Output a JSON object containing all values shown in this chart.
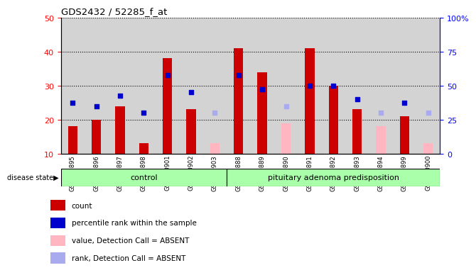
{
  "title": "GDS2432 / 52285_f_at",
  "samples": [
    "GSM100895",
    "GSM100896",
    "GSM100897",
    "GSM100898",
    "GSM100901",
    "GSM100902",
    "GSM100903",
    "GSM100888",
    "GSM100889",
    "GSM100890",
    "GSM100891",
    "GSM100892",
    "GSM100893",
    "GSM100894",
    "GSM100899",
    "GSM100900"
  ],
  "count_values": [
    18,
    20,
    24,
    13,
    38,
    23,
    null,
    41,
    34,
    null,
    41,
    30,
    23,
    null,
    21,
    null
  ],
  "rank_values_left": [
    25,
    24,
    27,
    22,
    33,
    28,
    null,
    33,
    29,
    null,
    30,
    30,
    26,
    null,
    25,
    null
  ],
  "absent_value": [
    null,
    null,
    null,
    null,
    null,
    null,
    13,
    null,
    null,
    19,
    null,
    null,
    null,
    18,
    null,
    13
  ],
  "absent_rank_left": [
    null,
    null,
    null,
    null,
    null,
    null,
    22,
    null,
    null,
    24,
    null,
    null,
    null,
    22,
    null,
    22
  ],
  "ylim_left": [
    10,
    50
  ],
  "ylim_right": [
    0,
    100
  ],
  "left_ticks": [
    10,
    20,
    30,
    40,
    50
  ],
  "right_ticks": [
    0,
    25,
    50,
    75,
    100
  ],
  "bar_color": "#cc0000",
  "rank_color": "#0000cc",
  "absent_bar_color": "#ffb6c1",
  "absent_rank_color": "#aaaaee",
  "control_color": "#aaffaa",
  "adenoma_color": "#aaffaa",
  "bg_color": "#d3d3d3",
  "disease_state_label": "disease state",
  "group1_label": "control",
  "group2_label": "pituitary adenoma predisposition",
  "legend_items": [
    "count",
    "percentile rank within the sample",
    "value, Detection Call = ABSENT",
    "rank, Detection Call = ABSENT"
  ],
  "legend_colors": [
    "#cc0000",
    "#0000cc",
    "#ffb6c1",
    "#aaaaee"
  ],
  "n_control": 7,
  "n_adenoma": 9
}
